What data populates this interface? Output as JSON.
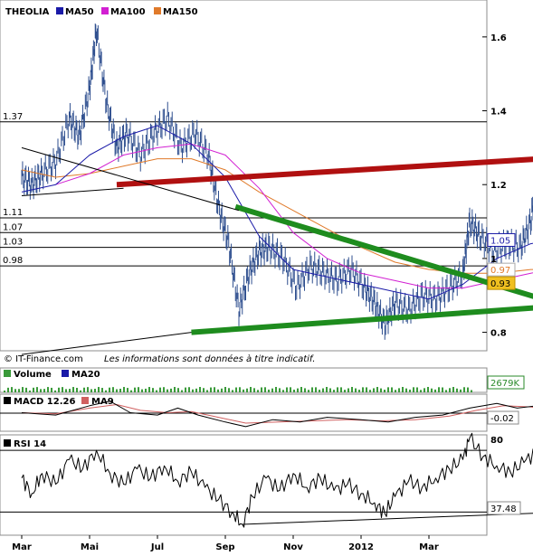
{
  "chart_data": [
    {
      "type": "line",
      "pane": "price",
      "title": "THEOLIA",
      "legend": [
        {
          "label": "MA50",
          "color": "#1a1aa8"
        },
        {
          "label": "MA100",
          "color": "#d21fd2"
        },
        {
          "label": "MA150",
          "color": "#e07a2a"
        }
      ],
      "x_labels": [
        "Mar",
        "Mai",
        "Jul",
        "Sep",
        "Nov",
        "2012",
        "Mar"
      ],
      "y_ticks": [
        1.6,
        1.4,
        1.2,
        1,
        0.8
      ],
      "y_tick_labels": [
        "1.6",
        "1.4",
        "1.2",
        "1",
        "0.8"
      ],
      "ylim": [
        0.75,
        1.7
      ],
      "grid": false,
      "price_color": "#2f4f8f",
      "levels": [
        {
          "value": 1.37,
          "label": "1.37"
        },
        {
          "value": 1.11,
          "label": "1.11"
        },
        {
          "value": 1.07,
          "label": "1.07"
        },
        {
          "value": 1.03,
          "label": "1.03"
        },
        {
          "value": 0.98,
          "label": "0.98"
        }
      ],
      "badges": [
        {
          "label": "1.05",
          "text_color": "#1a1aa8",
          "fill": "#ffffff",
          "stroke": "#1a1aa8"
        },
        {
          "label": "0.97",
          "text_color": "#e07a2a",
          "fill": "#ffffff",
          "stroke": "#aaaaaa"
        },
        {
          "label": "0.93",
          "text_color": "#000000",
          "fill": "#f0c020",
          "stroke": "#c09000"
        }
      ],
      "close_series": [
        {
          "m": 0.0,
          "v": 1.22
        },
        {
          "m": 0.3,
          "v": 1.2
        },
        {
          "m": 0.6,
          "v": 1.23
        },
        {
          "m": 1.0,
          "v": 1.26
        },
        {
          "m": 1.4,
          "v": 1.38
        },
        {
          "m": 1.7,
          "v": 1.33
        },
        {
          "m": 2.0,
          "v": 1.46
        },
        {
          "m": 2.2,
          "v": 1.62
        },
        {
          "m": 2.5,
          "v": 1.42
        },
        {
          "m": 2.8,
          "v": 1.3
        },
        {
          "m": 3.1,
          "v": 1.34
        },
        {
          "m": 3.5,
          "v": 1.28
        },
        {
          "m": 3.9,
          "v": 1.34
        },
        {
          "m": 4.3,
          "v": 1.38
        },
        {
          "m": 4.7,
          "v": 1.3
        },
        {
          "m": 5.1,
          "v": 1.34
        },
        {
          "m": 5.5,
          "v": 1.28
        },
        {
          "m": 5.8,
          "v": 1.14
        },
        {
          "m": 6.1,
          "v": 1.04
        },
        {
          "m": 6.4,
          "v": 0.86
        },
        {
          "m": 6.7,
          "v": 0.96
        },
        {
          "m": 7.0,
          "v": 1.02
        },
        {
          "m": 7.3,
          "v": 1.03
        },
        {
          "m": 7.7,
          "v": 1.0
        },
        {
          "m": 8.1,
          "v": 0.92
        },
        {
          "m": 8.5,
          "v": 0.98
        },
        {
          "m": 8.9,
          "v": 0.96
        },
        {
          "m": 9.3,
          "v": 0.94
        },
        {
          "m": 9.7,
          "v": 0.97
        },
        {
          "m": 10.1,
          "v": 0.92
        },
        {
          "m": 10.4,
          "v": 0.88
        },
        {
          "m": 10.7,
          "v": 0.82
        },
        {
          "m": 11.0,
          "v": 0.88
        },
        {
          "m": 11.4,
          "v": 0.86
        },
        {
          "m": 11.8,
          "v": 0.9
        },
        {
          "m": 12.2,
          "v": 0.89
        },
        {
          "m": 12.6,
          "v": 0.92
        },
        {
          "m": 13.0,
          "v": 0.96
        },
        {
          "m": 13.2,
          "v": 1.1
        },
        {
          "m": 13.5,
          "v": 1.06
        },
        {
          "m": 13.9,
          "v": 1.02
        },
        {
          "m": 14.3,
          "v": 1.04
        },
        {
          "m": 14.7,
          "v": 1.03
        },
        {
          "m": 15.0,
          "v": 1.1
        },
        {
          "m": 15.2,
          "v": 1.24
        },
        {
          "m": 15.4,
          "v": 1.1
        },
        {
          "m": 15.6,
          "v": 0.99
        }
      ],
      "ma50_series": [
        {
          "m": 0.0,
          "v": 1.18
        },
        {
          "m": 1.0,
          "v": 1.2
        },
        {
          "m": 2.0,
          "v": 1.28
        },
        {
          "m": 3.0,
          "v": 1.33
        },
        {
          "m": 4.0,
          "v": 1.36
        },
        {
          "m": 5.0,
          "v": 1.31
        },
        {
          "m": 6.0,
          "v": 1.22
        },
        {
          "m": 7.0,
          "v": 1.06
        },
        {
          "m": 8.0,
          "v": 0.97
        },
        {
          "m": 9.0,
          "v": 0.95
        },
        {
          "m": 10.0,
          "v": 0.93
        },
        {
          "m": 11.0,
          "v": 0.91
        },
        {
          "m": 12.0,
          "v": 0.89
        },
        {
          "m": 13.0,
          "v": 0.93
        },
        {
          "m": 14.0,
          "v": 1.0
        },
        {
          "m": 15.0,
          "v": 1.04
        },
        {
          "m": 15.6,
          "v": 1.05
        }
      ],
      "ma100_series": [
        {
          "m": 1.0,
          "v": 1.2
        },
        {
          "m": 2.0,
          "v": 1.23
        },
        {
          "m": 3.0,
          "v": 1.28
        },
        {
          "m": 4.0,
          "v": 1.3
        },
        {
          "m": 5.0,
          "v": 1.31
        },
        {
          "m": 6.0,
          "v": 1.28
        },
        {
          "m": 7.0,
          "v": 1.19
        },
        {
          "m": 8.0,
          "v": 1.07
        },
        {
          "m": 9.0,
          "v": 1.0
        },
        {
          "m": 10.0,
          "v": 0.96
        },
        {
          "m": 11.0,
          "v": 0.94
        },
        {
          "m": 12.0,
          "v": 0.92
        },
        {
          "m": 13.0,
          "v": 0.92
        },
        {
          "m": 14.0,
          "v": 0.94
        },
        {
          "m": 15.0,
          "v": 0.96
        },
        {
          "m": 15.6,
          "v": 0.97
        }
      ],
      "ma150_series": [
        {
          "m": 0.0,
          "v": 1.24
        },
        {
          "m": 1.0,
          "v": 1.22
        },
        {
          "m": 2.0,
          "v": 1.23
        },
        {
          "m": 3.0,
          "v": 1.25
        },
        {
          "m": 4.0,
          "v": 1.27
        },
        {
          "m": 5.0,
          "v": 1.27
        },
        {
          "m": 6.0,
          "v": 1.24
        },
        {
          "m": 7.0,
          "v": 1.18
        },
        {
          "m": 8.0,
          "v": 1.13
        },
        {
          "m": 9.0,
          "v": 1.08
        },
        {
          "m": 10.0,
          "v": 1.03
        },
        {
          "m": 11.0,
          "v": 0.99
        },
        {
          "m": 12.0,
          "v": 0.97
        },
        {
          "m": 13.0,
          "v": 0.96
        },
        {
          "m": 14.0,
          "v": 0.96
        },
        {
          "m": 15.0,
          "v": 0.97
        },
        {
          "m": 15.6,
          "v": 0.97
        }
      ],
      "trendlines": [
        {
          "name": "red-resistance-line",
          "color": "#b01010",
          "width": 6,
          "from": {
            "m": 2.8,
            "v": 1.2
          },
          "to": {
            "m": 17.1,
            "v": 1.28
          }
        },
        {
          "name": "green-falling-line",
          "color": "#1e8c1e",
          "width": 6,
          "from": {
            "m": 6.3,
            "v": 1.14
          },
          "to": {
            "m": 16.8,
            "v": 0.85
          }
        },
        {
          "name": "green-rising-line",
          "color": "#1e8c1e",
          "width": 6,
          "from": {
            "m": 5.0,
            "v": 0.8
          },
          "to": {
            "m": 17.2,
            "v": 0.88
          }
        },
        {
          "name": "black-descending-line",
          "color": "#000000",
          "width": 1,
          "from": {
            "m": 0.0,
            "v": 1.3
          },
          "to": {
            "m": 6.4,
            "v": 1.13
          }
        },
        {
          "name": "black-support-line",
          "color": "#000000",
          "width": 1,
          "from": {
            "m": 0.0,
            "v": 1.17
          },
          "to": {
            "m": 3.0,
            "v": 1.19
          }
        },
        {
          "name": "black-long-support-line",
          "color": "#000000",
          "width": 1,
          "from": {
            "m": 0.0,
            "v": 0.74
          },
          "to": {
            "m": 5.0,
            "v": 0.8
          }
        }
      ],
      "highlight_circle": {
        "m": 16.2,
        "v": 0.89
      },
      "credit": "© IT-Finance.com",
      "disclaimer": "Les informations sont données à titre indicatif."
    },
    {
      "type": "bar",
      "pane": "volume",
      "legend": [
        {
          "label": "Volume",
          "color": "#3a9a3a"
        },
        {
          "label": "MA20",
          "color": "#1a1aa8"
        }
      ],
      "value_label": "2679K",
      "value_color": "#2a8a2a"
    },
    {
      "type": "line",
      "pane": "macd",
      "legend": [
        {
          "label": "MACD 12.26",
          "color": "#000000"
        },
        {
          "label": "MA9",
          "color": "#d06060"
        }
      ],
      "value_label": "-0.02",
      "ylim": [
        -0.08,
        0.08
      ],
      "series": [
        {
          "m": 0.0,
          "v": 0.0
        },
        {
          "m": 1.0,
          "v": -0.01
        },
        {
          "m": 2.0,
          "v": 0.03
        },
        {
          "m": 2.6,
          "v": 0.05
        },
        {
          "m": 3.2,
          "v": 0.0
        },
        {
          "m": 4.0,
          "v": -0.01
        },
        {
          "m": 4.6,
          "v": 0.02
        },
        {
          "m": 5.2,
          "v": -0.01
        },
        {
          "m": 6.0,
          "v": -0.04
        },
        {
          "m": 6.6,
          "v": -0.06
        },
        {
          "m": 7.4,
          "v": -0.03
        },
        {
          "m": 8.2,
          "v": -0.04
        },
        {
          "m": 9.0,
          "v": -0.02
        },
        {
          "m": 10.0,
          "v": -0.03
        },
        {
          "m": 10.8,
          "v": -0.04
        },
        {
          "m": 11.6,
          "v": -0.02
        },
        {
          "m": 12.4,
          "v": -0.01
        },
        {
          "m": 13.2,
          "v": 0.02
        },
        {
          "m": 14.0,
          "v": 0.04
        },
        {
          "m": 14.6,
          "v": 0.02
        },
        {
          "m": 15.2,
          "v": 0.03
        },
        {
          "m": 15.6,
          "v": -0.02
        }
      ],
      "signal": [
        {
          "m": 0.0,
          "v": 0.0
        },
        {
          "m": 1.0,
          "v": -0.005
        },
        {
          "m": 2.0,
          "v": 0.02
        },
        {
          "m": 2.8,
          "v": 0.035
        },
        {
          "m": 3.5,
          "v": 0.01
        },
        {
          "m": 4.3,
          "v": 0.0
        },
        {
          "m": 5.0,
          "v": 0.005
        },
        {
          "m": 5.8,
          "v": -0.02
        },
        {
          "m": 6.6,
          "v": -0.045
        },
        {
          "m": 7.6,
          "v": -0.04
        },
        {
          "m": 8.6,
          "v": -0.035
        },
        {
          "m": 9.6,
          "v": -0.03
        },
        {
          "m": 10.6,
          "v": -0.035
        },
        {
          "m": 11.6,
          "v": -0.03
        },
        {
          "m": 12.6,
          "v": -0.015
        },
        {
          "m": 13.4,
          "v": 0.01
        },
        {
          "m": 14.2,
          "v": 0.03
        },
        {
          "m": 15.0,
          "v": 0.025
        },
        {
          "m": 15.6,
          "v": 0.01
        }
      ]
    },
    {
      "type": "line",
      "pane": "rsi",
      "legend": [
        {
          "label": "RSI 14",
          "color": "#000000"
        }
      ],
      "value_label": "37.48",
      "y_top_label": "80",
      "ylim": [
        15,
        80
      ],
      "bands": [
        70,
        30
      ],
      "series": [
        {
          "m": 0.0,
          "v": 52
        },
        {
          "m": 0.3,
          "v": 42
        },
        {
          "m": 0.6,
          "v": 55
        },
        {
          "m": 1.0,
          "v": 48
        },
        {
          "m": 1.4,
          "v": 64
        },
        {
          "m": 1.8,
          "v": 58
        },
        {
          "m": 2.2,
          "v": 70
        },
        {
          "m": 2.6,
          "v": 55
        },
        {
          "m": 3.0,
          "v": 48
        },
        {
          "m": 3.4,
          "v": 58
        },
        {
          "m": 3.8,
          "v": 52
        },
        {
          "m": 4.2,
          "v": 60
        },
        {
          "m": 4.6,
          "v": 50
        },
        {
          "m": 5.0,
          "v": 56
        },
        {
          "m": 5.4,
          "v": 46
        },
        {
          "m": 5.8,
          "v": 38
        },
        {
          "m": 6.2,
          "v": 30
        },
        {
          "m": 6.5,
          "v": 22
        },
        {
          "m": 6.8,
          "v": 40
        },
        {
          "m": 7.2,
          "v": 52
        },
        {
          "m": 7.6,
          "v": 44
        },
        {
          "m": 8.0,
          "v": 55
        },
        {
          "m": 8.4,
          "v": 46
        },
        {
          "m": 8.8,
          "v": 52
        },
        {
          "m": 9.2,
          "v": 44
        },
        {
          "m": 9.6,
          "v": 48
        },
        {
          "m": 10.0,
          "v": 42
        },
        {
          "m": 10.4,
          "v": 36
        },
        {
          "m": 10.7,
          "v": 29
        },
        {
          "m": 11.0,
          "v": 40
        },
        {
          "m": 11.4,
          "v": 50
        },
        {
          "m": 11.8,
          "v": 46
        },
        {
          "m": 12.2,
          "v": 52
        },
        {
          "m": 12.6,
          "v": 58
        },
        {
          "m": 13.0,
          "v": 64
        },
        {
          "m": 13.2,
          "v": 78
        },
        {
          "m": 13.6,
          "v": 66
        },
        {
          "m": 14.0,
          "v": 60
        },
        {
          "m": 14.4,
          "v": 56
        },
        {
          "m": 14.8,
          "v": 62
        },
        {
          "m": 15.2,
          "v": 70
        },
        {
          "m": 15.4,
          "v": 55
        },
        {
          "m": 15.6,
          "v": 37.48
        }
      ],
      "support_line": {
        "from": {
          "m": 6.5,
          "v": 22
        },
        "to": {
          "m": 17.2,
          "v": 31
        }
      }
    }
  ]
}
